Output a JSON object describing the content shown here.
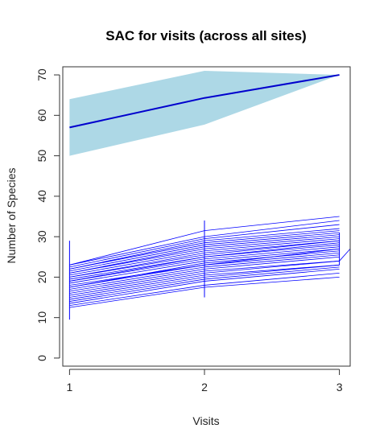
{
  "chart_data": {
    "type": "line",
    "title": "SAC for visits (across all sites)",
    "xlabel": "Visits",
    "ylabel": "Number of Species",
    "x": [
      1,
      2,
      3
    ],
    "xlim": [
      0.95,
      3.08
    ],
    "ylim": [
      -2,
      72
    ],
    "xticks": [
      "1",
      "2",
      "3"
    ],
    "yticks": [
      "0",
      "10",
      "20",
      "30",
      "40",
      "50",
      "60",
      "70"
    ],
    "grid": false,
    "legend": "none",
    "colors": {
      "ribbon": "#add8e6",
      "mean_line": "#0000cd",
      "site_lines": "#0000ff"
    },
    "overall": {
      "mean": [
        57,
        64.3,
        70
      ],
      "lower": [
        50,
        57.7,
        70
      ],
      "upper": [
        64,
        71,
        70
      ]
    },
    "site_curves": [
      [
        12.5,
        17.5,
        20
      ],
      [
        13,
        18,
        21
      ],
      [
        13.5,
        19,
        22
      ],
      [
        14,
        19.5,
        22.5
      ],
      [
        14.5,
        20,
        23
      ],
      [
        15,
        20.5,
        23
      ],
      [
        15.5,
        21,
        24
      ],
      [
        16,
        21.5,
        24
      ],
      [
        16.5,
        22,
        25
      ],
      [
        17,
        22.5,
        25.5
      ],
      [
        17.5,
        23,
        26
      ],
      [
        17.5,
        23.5,
        26.5
      ],
      [
        18,
        23,
        27
      ],
      [
        18.5,
        24,
        27
      ],
      [
        19,
        24.5,
        27.5
      ],
      [
        19,
        25,
        28
      ],
      [
        19.5,
        25,
        28.5
      ],
      [
        20,
        25.5,
        29
      ],
      [
        20,
        26,
        29
      ],
      [
        20.5,
        26.5,
        29.5
      ],
      [
        21,
        27,
        30
      ],
      [
        21,
        27.5,
        30.5
      ],
      [
        21.5,
        28,
        31
      ],
      [
        22,
        28.5,
        31.5
      ],
      [
        22,
        29,
        32
      ],
      [
        22.5,
        29.5,
        33
      ],
      [
        23,
        30,
        34
      ],
      [
        23,
        31.5,
        35
      ]
    ],
    "error_bars": [
      {
        "x": 1,
        "low": 9.5,
        "high": 29
      },
      {
        "x": 2,
        "low": 15,
        "high": 34
      },
      {
        "x": 3,
        "low": 23,
        "high": 31
      }
    ],
    "stray_segment": [
      [
        3,
        24
      ],
      [
        3.08,
        27
      ]
    ]
  }
}
